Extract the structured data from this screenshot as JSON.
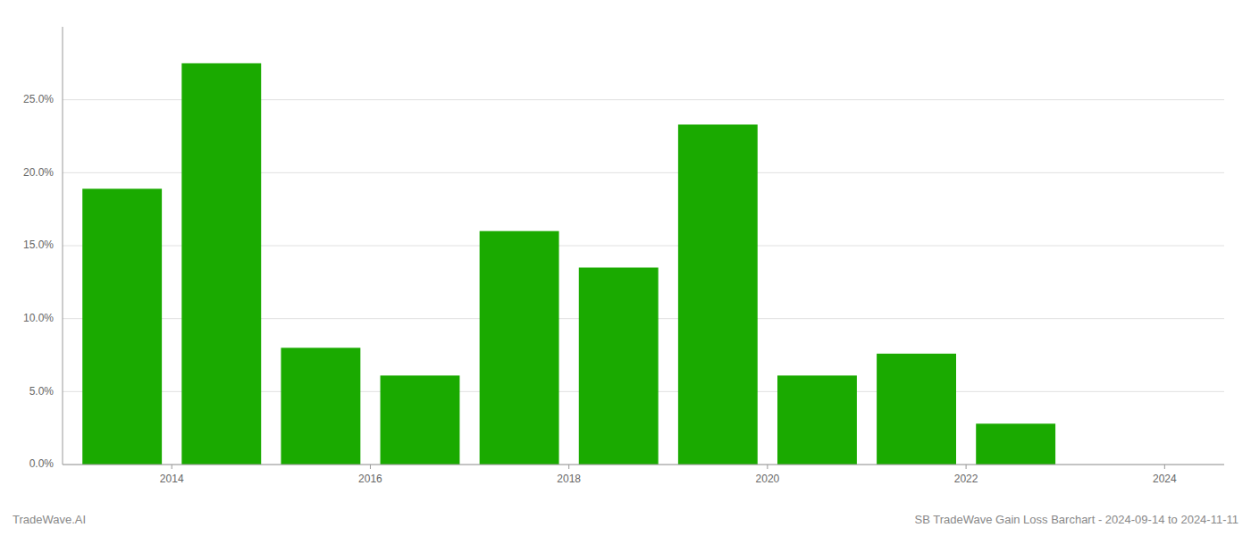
{
  "chart_data": {
    "type": "bar",
    "x": [
      2014,
      2015,
      2016,
      2017,
      2018,
      2019,
      2020,
      2021,
      2022,
      2023,
      2024
    ],
    "values": [
      0.189,
      0.275,
      0.08,
      0.061,
      0.16,
      0.135,
      0.233,
      0.061,
      0.076,
      0.028,
      0.0
    ],
    "color": "#1aaa00",
    "ylim": [
      0,
      0.3
    ],
    "yticks": [
      {
        "value": 0.0,
        "label": "0.0%"
      },
      {
        "value": 0.05,
        "label": "5.0%"
      },
      {
        "value": 0.1,
        "label": "10.0%"
      },
      {
        "value": 0.15,
        "label": "15.0%"
      },
      {
        "value": 0.2,
        "label": "20.0%"
      },
      {
        "value": 0.25,
        "label": "25.0%"
      }
    ],
    "xlim": [
      2013.4,
      2025.1
    ],
    "xticks": [
      {
        "value": 2014.5,
        "label": "2014"
      },
      {
        "value": 2016.5,
        "label": "2016"
      },
      {
        "value": 2018.5,
        "label": "2018"
      },
      {
        "value": 2020.5,
        "label": "2020"
      },
      {
        "value": 2022.5,
        "label": "2022"
      },
      {
        "value": 2024.5,
        "label": "2024"
      }
    ],
    "grid": true,
    "annotations": [
      "TradeWave.AI",
      "SB TradeWave Gain Loss Barchart - 2024-09-14 to 2024-11-11"
    ]
  }
}
